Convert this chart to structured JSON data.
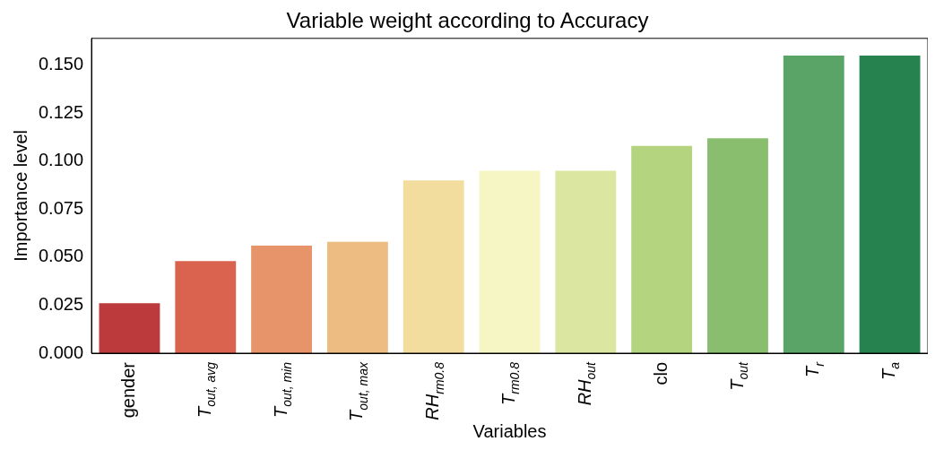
{
  "chart_data": {
    "type": "bar",
    "title": "Variable weight according to Accuracy",
    "xlabel": "Variables",
    "ylabel": "Importance level",
    "categories": [
      "gender",
      "T$_{out, avg}$",
      "T$_{out, min}$",
      "T$_{out, max}$",
      "RH$_{rm0.8}$",
      "T$_{rm0.8}$",
      "RH$_{out}$",
      "clo",
      "T$_{out}$",
      "T$_{r}$",
      "T$_{a}$"
    ],
    "values": [
      0.026,
      0.048,
      0.056,
      0.058,
      0.09,
      0.095,
      0.095,
      0.108,
      0.112,
      0.155,
      0.155
    ],
    "colors": [
      "#bd3a3c",
      "#d9634f",
      "#e8946a",
      "#ecbc82",
      "#f2dc9e",
      "#f6f6c4",
      "#dbe6a0",
      "#b4d47f",
      "#8abe6f",
      "#5aa468",
      "#268350"
    ],
    "ylim": [
      0,
      0.164
    ],
    "yticks": [
      {
        "value": 0,
        "label": "0.000"
      },
      {
        "value": 0.025,
        "label": "0.025"
      },
      {
        "value": 0.05,
        "label": "0.050"
      },
      {
        "value": 0.075,
        "label": "0.075"
      },
      {
        "value": 0.1,
        "label": "0.100"
      },
      {
        "value": 0.125,
        "label": "0.125"
      },
      {
        "value": 0.15,
        "label": "0.150"
      }
    ],
    "grid": false,
    "legend": false
  }
}
